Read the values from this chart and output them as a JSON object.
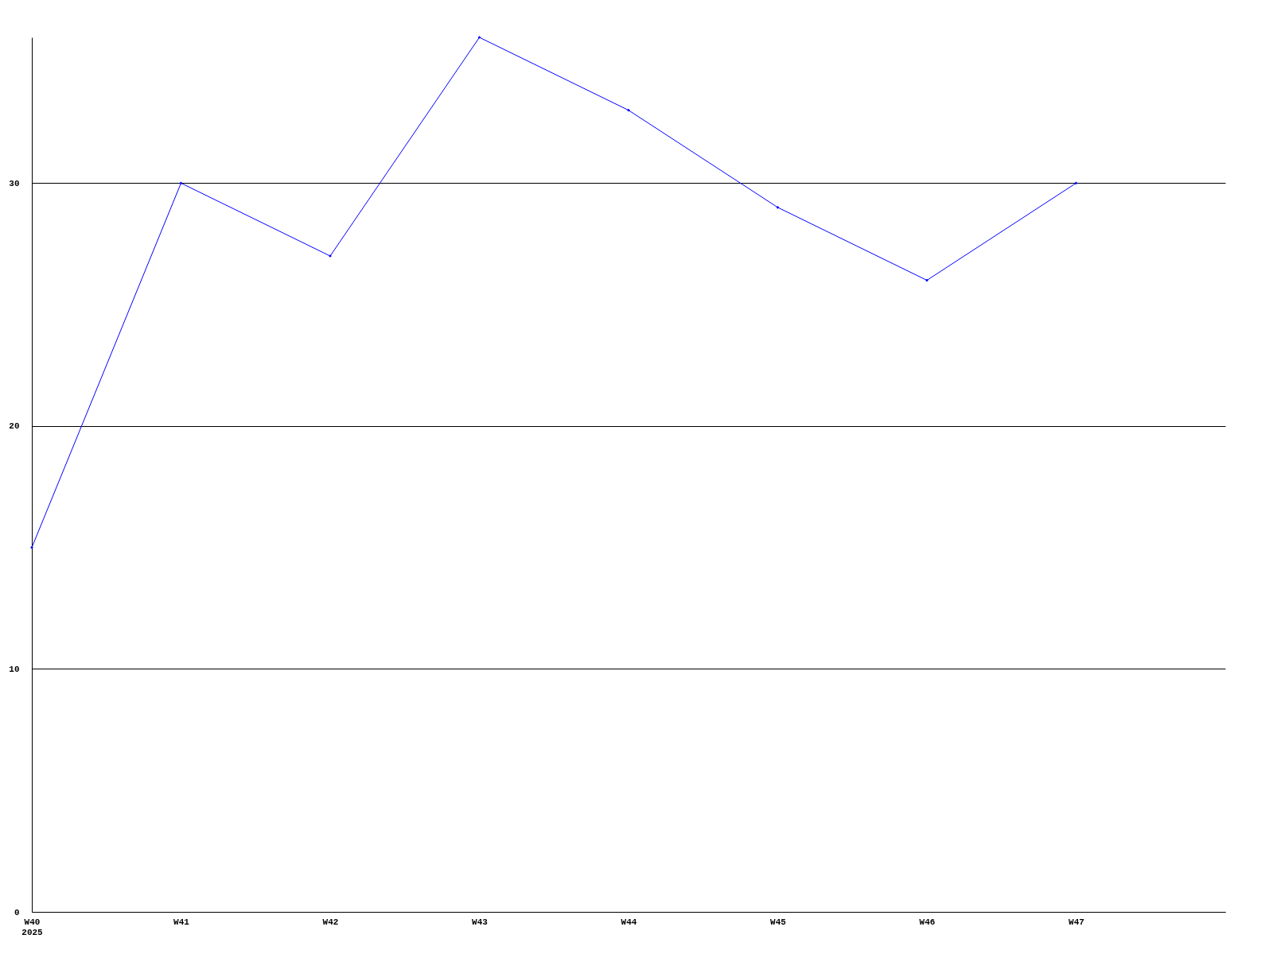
{
  "chart_data": {
    "type": "line",
    "categories": [
      "W40\n2025",
      "W41",
      "W42",
      "W43",
      "W44",
      "W45",
      "W46",
      "W47",
      null
    ],
    "series": [
      {
        "color": "#0000ff",
        "values": [
          15,
          30,
          27,
          36,
          33,
          29,
          26,
          30,
          null
        ]
      }
    ],
    "ylim": [
      0,
      36
    ],
    "yticks": [
      0,
      10,
      20,
      30
    ],
    "grid": "y",
    "marker": "diamond",
    "line_style": "solid"
  }
}
